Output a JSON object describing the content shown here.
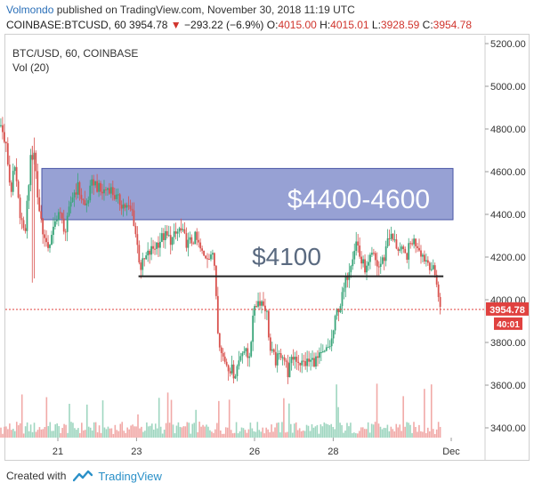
{
  "header": {
    "author": "Volmondo",
    "published": "published on TradingView.com, November 30, 2018 11:19 UTC",
    "symbol": "COINBASE:BTCUSD, 60",
    "last": "3954.78",
    "change": "−293.22 (−6.9%)",
    "o_label": "O:",
    "o": "4015.00",
    "h_label": "H:",
    "h": "4015.01",
    "l_label": "L:",
    "l": "3928.59",
    "c_label": "C:",
    "c": "3954.78"
  },
  "legend": {
    "title": "BTC/USD, 60, COINBASE",
    "vol": "Vol (20)"
  },
  "annotations": {
    "box_label": "$4400-4600",
    "line_label": "$4100",
    "box_color": "#7a86c8",
    "price_tag": "3954.78",
    "countdown": "40:01"
  },
  "footer": {
    "created_with": "Created with",
    "brand": "TradingView"
  },
  "colors": {
    "up": "#3aa57a",
    "down": "#d9534f",
    "price_tag_bg": "#e0413f"
  },
  "chart_data": {
    "type": "candlestick",
    "symbol": "BTC/USD",
    "interval": "60",
    "exchange": "COINBASE",
    "ylim": [
      3350,
      5250
    ],
    "y_ticks": [
      3400,
      3600,
      3800,
      4000,
      4200,
      4400,
      4600,
      4800,
      5000,
      5200
    ],
    "x_ticks": [
      "21",
      "23",
      "26",
      "28",
      "Dec"
    ],
    "x_tick_days": [
      21,
      23,
      26,
      28,
      31
    ],
    "x_range_days": [
      19.15,
      31.2
    ],
    "close_path": [
      [
        19.15,
        5150
      ],
      [
        19.3,
        5000
      ],
      [
        19.5,
        4850
      ],
      [
        19.7,
        4700
      ],
      [
        19.8,
        4500
      ],
      [
        19.9,
        4620
      ],
      [
        20.0,
        4450
      ],
      [
        20.1,
        4350
      ],
      [
        20.15,
        4280
      ],
      [
        20.3,
        4650
      ],
      [
        20.4,
        4700
      ],
      [
        20.5,
        4450
      ],
      [
        20.6,
        4350
      ],
      [
        20.7,
        4240
      ],
      [
        20.85,
        4290
      ],
      [
        21.0,
        4420
      ],
      [
        21.2,
        4320
      ],
      [
        21.35,
        4480
      ],
      [
        21.5,
        4530
      ],
      [
        21.7,
        4430
      ],
      [
        21.9,
        4560
      ],
      [
        22.1,
        4500
      ],
      [
        22.3,
        4530
      ],
      [
        22.5,
        4470
      ],
      [
        22.7,
        4440
      ],
      [
        22.9,
        4410
      ],
      [
        23.0,
        4280
      ],
      [
        23.1,
        4150
      ],
      [
        23.25,
        4200
      ],
      [
        23.5,
        4260
      ],
      [
        23.7,
        4300
      ],
      [
        23.9,
        4280
      ],
      [
        24.1,
        4330
      ],
      [
        24.3,
        4260
      ],
      [
        24.5,
        4290
      ],
      [
        24.7,
        4200
      ],
      [
        24.9,
        4220
      ],
      [
        25.0,
        4150
      ],
      [
        25.05,
        3900
      ],
      [
        25.15,
        3750
      ],
      [
        25.3,
        3700
      ],
      [
        25.5,
        3650
      ],
      [
        25.7,
        3780
      ],
      [
        25.85,
        3720
      ],
      [
        25.95,
        3880
      ],
      [
        26.0,
        3980
      ],
      [
        26.15,
        4000
      ],
      [
        26.3,
        3960
      ],
      [
        26.4,
        3760
      ],
      [
        26.55,
        3710
      ],
      [
        26.7,
        3760
      ],
      [
        26.85,
        3660
      ],
      [
        27.0,
        3740
      ],
      [
        27.2,
        3700
      ],
      [
        27.4,
        3710
      ],
      [
        27.6,
        3720
      ],
      [
        27.8,
        3750
      ],
      [
        27.95,
        3800
      ],
      [
        28.1,
        3950
      ],
      [
        28.2,
        3990
      ],
      [
        28.35,
        4110
      ],
      [
        28.5,
        4220
      ],
      [
        28.6,
        4280
      ],
      [
        28.7,
        4180
      ],
      [
        28.85,
        4140
      ],
      [
        29.0,
        4210
      ],
      [
        29.15,
        4150
      ],
      [
        29.3,
        4200
      ],
      [
        29.4,
        4310
      ],
      [
        29.55,
        4270
      ],
      [
        29.7,
        4230
      ],
      [
        29.85,
        4200
      ],
      [
        30.0,
        4280
      ],
      [
        30.15,
        4260
      ],
      [
        30.3,
        4200
      ],
      [
        30.45,
        4170
      ],
      [
        30.55,
        4130
      ],
      [
        30.65,
        4080
      ],
      [
        30.7,
        3955
      ]
    ],
    "annotations": {
      "resistance_zone": [
        4375,
        4615
      ],
      "support_line": 4110,
      "support_line_days": [
        23.05,
        30.8
      ]
    },
    "volume": {
      "ylim": [
        0,
        100
      ],
      "series": "hourly volume (relative)"
    }
  }
}
